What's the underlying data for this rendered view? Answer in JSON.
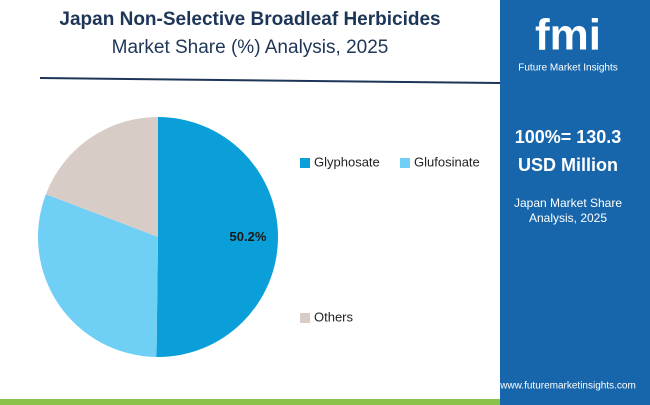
{
  "chart_data": {
    "type": "pie",
    "title": "Japan Non-Selective Broadleaf Herbicides",
    "subtitle": "Market Share (%) Analysis, 2025",
    "categories": [
      "Glyphosate",
      "Glufosinate",
      "Others"
    ],
    "values": [
      50.2,
      30.6,
      19.2
    ],
    "value_labels": [
      "50.2%",
      null,
      null
    ],
    "colors": [
      "#0b9fd9",
      "#6fcff5",
      "#d7ccc6"
    ]
  },
  "sidebar": {
    "logo": "fmi",
    "logo_sub": "Future Market Insights",
    "total": "100%= 130.3",
    "unit": "USD Million",
    "caption": [
      "Japan Market Share",
      "Analysis, 2025"
    ],
    "url": "www.futuremarketinsights.com"
  }
}
